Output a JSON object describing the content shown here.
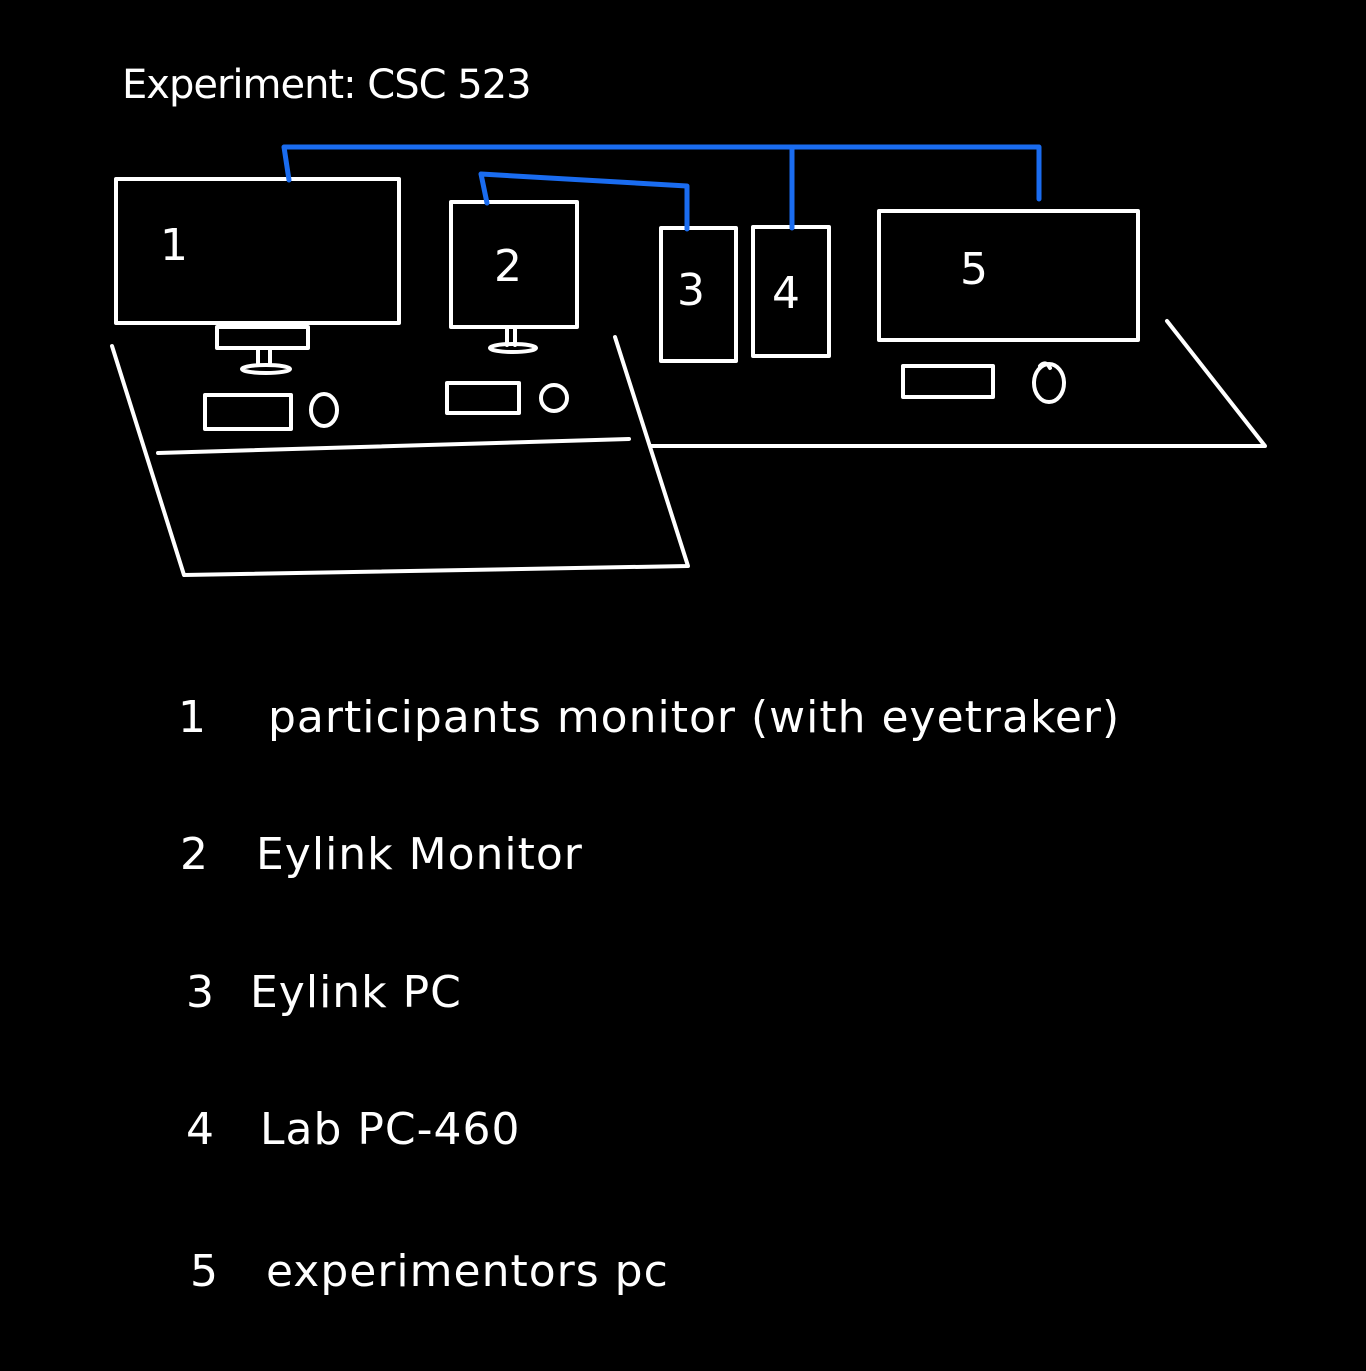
{
  "title": "Experiment: CSC 523",
  "colors": {
    "background": "#000000",
    "stroke": "#ffffff",
    "connection": "#1a6cf0"
  },
  "devices": [
    {
      "number": "1"
    },
    {
      "number": "2"
    },
    {
      "number": "3"
    },
    {
      "number": "4"
    },
    {
      "number": "5"
    }
  ],
  "legend": [
    {
      "number": "1",
      "text": "participants monitor (with eyetraker)"
    },
    {
      "number": "2",
      "text": "Eylink Monitor"
    },
    {
      "number": "3",
      "text": "Eylink PC"
    },
    {
      "number": "4",
      "text": "Lab PC-460"
    },
    {
      "number": "5",
      "text": "experimentors pc"
    }
  ]
}
